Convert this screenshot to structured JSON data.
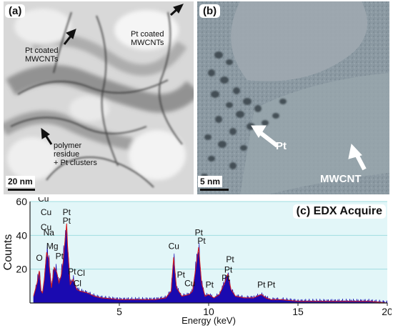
{
  "panel_a": {
    "label": "(a)",
    "annotations": [
      "Pt coated\nMWCNTs",
      "Pt coated\nMWCNTs",
      "polymer\nresidue\n+ Pt clusters"
    ],
    "scale_bar": "20 nm"
  },
  "panel_b": {
    "label": "(b)",
    "annotations": [
      "Pt",
      "MWCNT"
    ],
    "scale_bar": "5 nm"
  },
  "colors": {
    "spectrum_fill": "#1a0ab0",
    "peak_outline": "#d81b1b",
    "plot_bg": "#e2f6f8",
    "grid": "#9fdde0"
  },
  "chart_data": {
    "type": "area",
    "title": "(c) EDX Acquire",
    "xlabel": "Energy (keV)",
    "ylabel": "Counts",
    "xlim": [
      0,
      20
    ],
    "ylim": [
      0,
      60
    ],
    "x_ticks": [
      5,
      10,
      15,
      20
    ],
    "y_ticks": [
      20,
      40,
      60
    ],
    "grid": true,
    "series": [
      {
        "x": [
          0.2,
          0.3,
          0.4,
          0.52,
          0.62,
          0.7,
          0.8,
          0.93,
          1.04,
          1.2,
          1.35,
          1.5,
          1.62,
          1.74,
          1.85,
          1.95,
          2.05,
          2.1,
          2.25,
          2.4,
          2.62,
          2.8,
          3.2,
          3.6,
          4.0,
          5.0,
          6.0,
          7.0,
          7.6,
          7.9,
          8.04,
          8.2,
          8.5,
          8.9,
          9.1,
          9.44,
          9.6,
          9.8,
          10.0,
          10.3,
          10.6,
          10.9,
          11.07,
          11.25,
          11.5,
          12.0,
          12.5,
          12.95,
          13.2,
          13.5,
          14.0,
          15.0,
          16.0,
          17.0,
          18.0,
          19.0,
          20.0
        ],
        "y": [
          4,
          8,
          12,
          19,
          7,
          6,
          14,
          30,
          26,
          9,
          21,
          18,
          12,
          16,
          24,
          36,
          47,
          34,
          11,
          14,
          8,
          7,
          6,
          4,
          3,
          2,
          2,
          2,
          3,
          7,
          27,
          9,
          4,
          5,
          7,
          33,
          12,
          4,
          5,
          3,
          5,
          12,
          17,
          8,
          4,
          3,
          3,
          5,
          3,
          2,
          2,
          1,
          1,
          1,
          1,
          1,
          0
        ]
      }
    ],
    "peak_labels": [
      {
        "text": "Cu",
        "x": 0.75,
        "y": 60
      },
      {
        "text": "Cu",
        "x": 0.9,
        "y": 52
      },
      {
        "text": "Cu",
        "x": 0.9,
        "y": 43
      },
      {
        "text": "Na",
        "x": 1.05,
        "y": 40
      },
      {
        "text": "Pt",
        "x": 2.05,
        "y": 52
      },
      {
        "text": "Pt",
        "x": 2.05,
        "y": 47
      },
      {
        "text": "O",
        "x": 0.52,
        "y": 25
      },
      {
        "text": "Mg",
        "x": 1.25,
        "y": 32
      },
      {
        "text": "Pt",
        "x": 1.65,
        "y": 26
      },
      {
        "text": "Pt",
        "x": 2.35,
        "y": 17
      },
      {
        "text": "Cl",
        "x": 2.85,
        "y": 16
      },
      {
        "text": "Cl",
        "x": 2.65,
        "y": 10
      },
      {
        "text": "Cu",
        "x": 8.05,
        "y": 32
      },
      {
        "text": "Pt",
        "x": 9.45,
        "y": 40
      },
      {
        "text": "Pt",
        "x": 9.6,
        "y": 35
      },
      {
        "text": "Pt",
        "x": 8.45,
        "y": 15
      },
      {
        "text": "Cu",
        "x": 8.95,
        "y": 10
      },
      {
        "text": "Pt",
        "x": 10.05,
        "y": 9
      },
      {
        "text": "Pt",
        "x": 11.2,
        "y": 24
      },
      {
        "text": "Pt",
        "x": 11.1,
        "y": 18
      },
      {
        "text": "Pt",
        "x": 10.95,
        "y": 13
      },
      {
        "text": "Pt",
        "x": 12.95,
        "y": 9
      },
      {
        "text": "Pt",
        "x": 13.5,
        "y": 9
      }
    ]
  }
}
